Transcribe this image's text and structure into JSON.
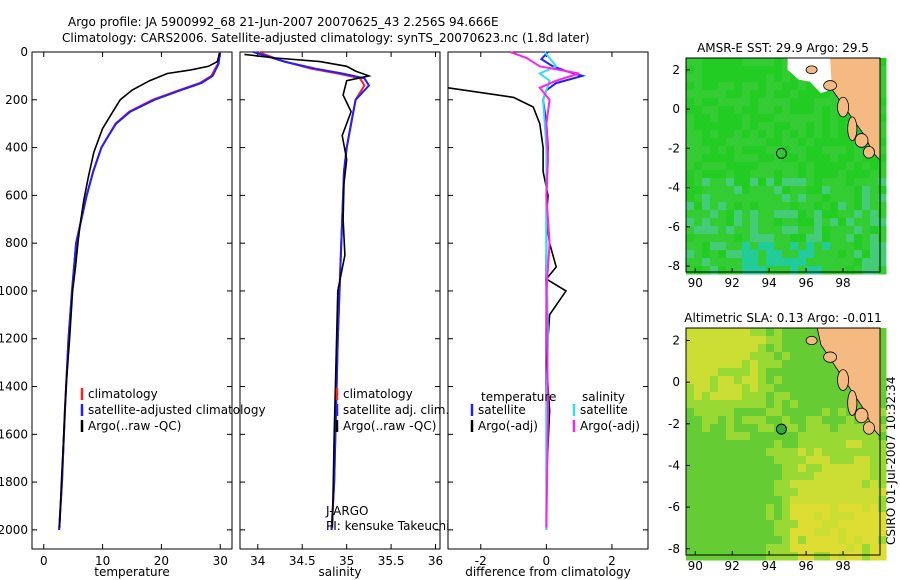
{
  "header": {
    "line1": "Argo profile: JA 5900992_68 21-Jun-2007 20070625_43 2.256S 94.666E",
    "line2": "Climatology: CARS2006. Satellite-adjusted climatology: synTS_20070623.nc (1.8d later)"
  },
  "side_label": "CSIRO 01-Jul-2007 10:32:34",
  "colors": {
    "climatology": "#ff2020",
    "satellite": "#1f1fff",
    "argo": "#000000",
    "sat_salinity": "#33ddee",
    "argo_salinity": "#ff22ee",
    "land": "#f4ba82",
    "sst_green": "#22cc22",
    "sla_green": "#66cc33",
    "sla_yellow": "#ccdd33"
  },
  "chart_data": [
    {
      "type": "line",
      "xlabel": "temperature",
      "xlim": [
        -2,
        32
      ],
      "xticks": [
        0,
        10,
        20,
        30
      ],
      "ylim": [
        2080,
        0
      ],
      "yticks": [
        0,
        200,
        400,
        600,
        800,
        1000,
        1200,
        1400,
        1600,
        1800,
        2000
      ],
      "legend": [
        "climatology",
        "satellite-adjusted climatology",
        "Argo(..raw -QC)"
      ],
      "series": [
        {
          "name": "climatology",
          "color_key": "climatology",
          "x": [
            29.9,
            29.6,
            28.5,
            26.5,
            23,
            18.5,
            14.5,
            12.2,
            11,
            9.8,
            8.4,
            7.3,
            6.4,
            5.5,
            4.8,
            4.2,
            3.6,
            3.1,
            2.6
          ],
          "y": [
            0,
            50,
            100,
            130,
            160,
            200,
            250,
            300,
            350,
            400,
            500,
            600,
            700,
            800,
            1000,
            1200,
            1500,
            1800,
            2000
          ]
        },
        {
          "name": "satellite-adjusted climatology",
          "color_key": "satellite",
          "x": [
            30,
            29.7,
            28.7,
            26.8,
            23.3,
            18.8,
            14.7,
            12.3,
            11,
            9.8,
            8.4,
            7.3,
            6.4,
            5.5,
            4.8,
            4.2,
            3.6,
            3.1,
            2.6
          ],
          "y": [
            0,
            50,
            100,
            130,
            160,
            200,
            250,
            300,
            350,
            400,
            500,
            600,
            700,
            800,
            1000,
            1200,
            1500,
            1800,
            2000
          ]
        },
        {
          "name": "Argo(..raw -QC)",
          "color_key": "argo",
          "x": [
            29.9,
            29.5,
            28,
            25,
            21,
            18,
            15,
            13,
            11.5,
            10,
            8.5,
            7.6,
            6.8,
            6.2,
            5.8,
            5.4,
            4.9,
            4.4,
            3.8,
            3.4,
            3,
            2.7
          ],
          "y": [
            5,
            40,
            60,
            75,
            90,
            120,
            160,
            200,
            260,
            320,
            420,
            520,
            620,
            720,
            800,
            900,
            1000,
            1200,
            1400,
            1600,
            1800,
            1990
          ]
        }
      ]
    },
    {
      "type": "line",
      "xlabel": "salinity",
      "xlim": [
        33.8,
        36.05
      ],
      "xticks": [
        34,
        34.5,
        35,
        35.5,
        36
      ],
      "ylim": [
        2080,
        0
      ],
      "legend": [
        "climatology",
        "satellite adj. clim.",
        "Argo(..raw -QC)"
      ],
      "annotation": [
        "J-ARGO",
        "PI: kensuke Takeuchi"
      ],
      "series": [
        {
          "name": "climatology",
          "color_key": "climatology",
          "x": [
            34.0,
            34.3,
            34.6,
            34.9,
            35.15,
            35.2,
            35.1,
            35.05,
            35,
            34.97,
            34.95,
            34.93,
            34.9,
            34.88,
            34.86,
            34.83
          ],
          "y": [
            0,
            40,
            70,
            90,
            110,
            140,
            200,
            300,
            400,
            500,
            700,
            900,
            1200,
            1500,
            1800,
            2000
          ]
        },
        {
          "name": "satellite adj. clim.",
          "color_key": "satellite",
          "x": [
            33.95,
            34.3,
            34.65,
            34.95,
            35.2,
            35.25,
            35.1,
            35.05,
            35,
            34.97,
            34.95,
            34.93,
            34.9,
            34.88,
            34.86,
            34.83
          ],
          "y": [
            0,
            40,
            70,
            90,
            110,
            140,
            200,
            300,
            400,
            500,
            700,
            900,
            1200,
            1500,
            1800,
            2000
          ]
        },
        {
          "name": "Argo(..raw -QC)",
          "color_key": "argo",
          "x": [
            33.85,
            34.2,
            34.7,
            35.0,
            35.1,
            35.25,
            35.0,
            34.96,
            35.05,
            34.95,
            35.0,
            34.97,
            34.96,
            34.98,
            34.9,
            34.88,
            34.86,
            34.84
          ],
          "y": [
            10,
            25,
            40,
            60,
            80,
            100,
            120,
            180,
            250,
            350,
            450,
            550,
            700,
            850,
            1000,
            1300,
            1600,
            1990
          ]
        }
      ]
    },
    {
      "type": "line",
      "xlabel": "difference from climatology",
      "xlim": [
        -3,
        3.1
      ],
      "xticks": [
        -2,
        0,
        2
      ],
      "ylim": [
        2080,
        0
      ],
      "legend_title": [
        "temperature",
        "salinity"
      ],
      "legend": [
        "satellite",
        "Argo(-adj)",
        "satellite",
        "Argo(-adj)"
      ],
      "series": [
        {
          "name": "satellite",
          "color_key": "satellite",
          "x": [
            0.05,
            -0.15,
            0.2,
            0.6,
            1.1,
            0.3,
            0.0,
            -0.1,
            0.0,
            0.05,
            0.0,
            0.0,
            0.0,
            0.0,
            0.0,
            0.0
          ],
          "y": [
            0,
            30,
            60,
            80,
            100,
            130,
            160,
            200,
            300,
            400,
            600,
            800,
            1000,
            1400,
            1700,
            2000
          ]
        },
        {
          "name": "Argo(-adj)",
          "color_key": "argo",
          "x": [
            -3,
            -2,
            -1,
            -0.4,
            -0.2,
            -0.1,
            -0.1,
            0.05,
            0.0,
            0.1,
            0.3,
            0.0,
            0.6,
            0.1,
            0.0,
            0.1,
            0.0,
            0.0
          ],
          "y": [
            150,
            170,
            190,
            230,
            300,
            400,
            500,
            600,
            700,
            800,
            900,
            950,
            1000,
            1100,
            1300,
            1500,
            1800,
            1990
          ]
        },
        {
          "name": "satellite",
          "color_key": "sat_salinity",
          "x": [
            -0.05,
            0.3,
            -0.2,
            0.1,
            -0.1,
            0.0,
            0.0,
            0.05,
            0.0,
            0.0,
            0.0
          ],
          "y": [
            0,
            60,
            90,
            120,
            200,
            400,
            800,
            1200,
            1500,
            1800,
            2000
          ]
        },
        {
          "name": "Argo(-adj)",
          "color_key": "argo_salinity",
          "x": [
            -1.1,
            -0.6,
            -0.2,
            1.0,
            0.3,
            -0.2,
            0.1,
            0.0,
            0.05,
            0.0,
            0.1,
            0.0,
            0.05,
            0.0
          ],
          "y": [
            0,
            25,
            60,
            90,
            120,
            150,
            200,
            300,
            450,
            600,
            800,
            1000,
            1500,
            1990
          ]
        }
      ]
    },
    {
      "type": "heatmap",
      "title": "AMSR-E SST: 29.9  Argo: 29.5",
      "xlim": [
        89.5,
        100
      ],
      "xticks": [
        90,
        92,
        94,
        96,
        98
      ],
      "ylim": [
        -8.3,
        2.6
      ],
      "yticks": [
        2,
        0,
        -2,
        -4,
        -6,
        -8
      ],
      "marker": {
        "lon": 94.666,
        "lat": -2.256
      }
    },
    {
      "type": "heatmap",
      "title": "Altimetric SLA: 0.13  Argo: -0.011",
      "xlim": [
        89.5,
        100
      ],
      "xticks": [
        90,
        92,
        94,
        96,
        98
      ],
      "ylim": [
        -8.3,
        2.6
      ],
      "yticks": [
        2,
        0,
        -2,
        -4,
        -6,
        -8
      ],
      "marker": {
        "lon": 94.666,
        "lat": -2.256
      }
    }
  ]
}
